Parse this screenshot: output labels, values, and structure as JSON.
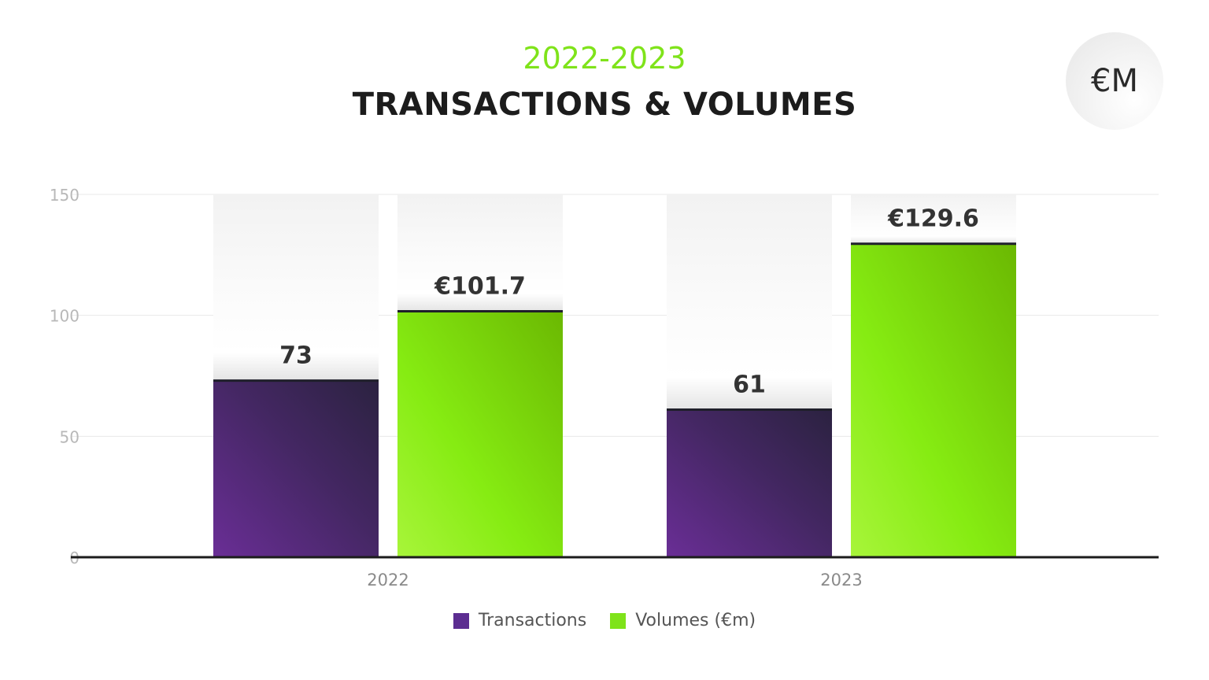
{
  "header": {
    "subtitle": "2022-2023",
    "title": "TRANSACTIONS & VOLUMES",
    "unit_badge": "€M"
  },
  "colors": {
    "accent_green": "#7fe31a",
    "transactions": "#5c2d91",
    "volumes": "#7fe31a",
    "axis": "#1c1c1c",
    "grid": "#e8e8e8"
  },
  "chart_data": {
    "type": "bar",
    "title": "TRANSACTIONS & VOLUMES",
    "subtitle": "2022-2023",
    "categories": [
      "2022",
      "2023"
    ],
    "series": [
      {
        "name": "Transactions",
        "values": [
          73,
          61
        ],
        "labels": [
          "73",
          "61"
        ],
        "color": "#5c2d91"
      },
      {
        "name": "Volumes (€m)",
        "values": [
          101.7,
          129.6
        ],
        "labels": [
          "€101.7",
          "€129.6"
        ],
        "color": "#7fe31a"
      }
    ],
    "y_ticks": [
      "0",
      "50",
      "100",
      "150"
    ],
    "ylim": [
      0,
      150
    ],
    "xlabel": "",
    "ylabel": "",
    "grid": true,
    "legend": "bottom-center"
  }
}
